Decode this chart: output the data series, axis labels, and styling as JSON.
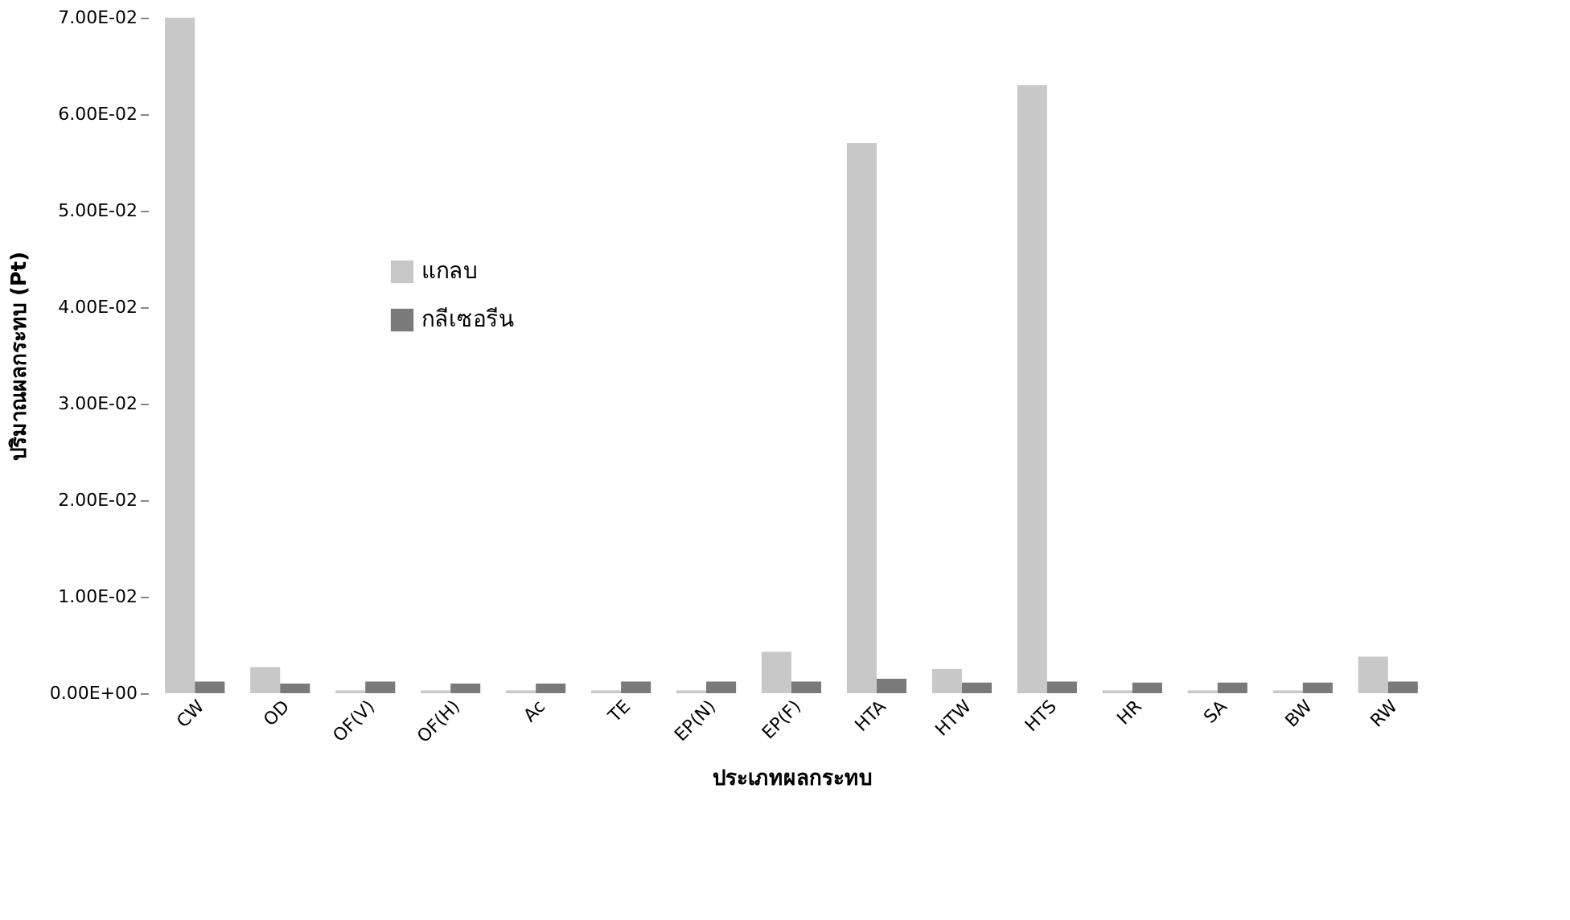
{
  "chart_data": {
    "type": "bar",
    "xlabel": "ประเภทผลกระทบ",
    "ylabel": "ปริมาณผลกระทบ (Pt)",
    "categories": [
      "CW",
      "OD",
      "OF(V)",
      "OF(H)",
      "Ac",
      "TE",
      "EP(N)",
      "EP(F)",
      "HTA",
      "HTW",
      "HTS",
      "HR",
      "SA",
      "BW",
      "RW"
    ],
    "series": [
      {
        "name": "แกลบ",
        "color": "#c8c8c8",
        "values": [
          0.07,
          0.0027,
          0.0003,
          0.0003,
          0.0003,
          0.0003,
          0.0003,
          0.0043,
          0.057,
          0.0025,
          0.063,
          0.0003,
          0.0003,
          0.0003,
          0.0038
        ]
      },
      {
        "name": "กลีเซอรีน",
        "color": "#7a7a7a",
        "values": [
          0.0012,
          0.001,
          0.0012,
          0.001,
          0.001,
          0.0012,
          0.0012,
          0.0012,
          0.0015,
          0.0011,
          0.0012,
          0.0011,
          0.0011,
          0.0011,
          0.0012
        ]
      }
    ],
    "ylim": [
      0,
      0.07
    ],
    "yticks": [
      {
        "value": 0,
        "label": "0.00E+00"
      },
      {
        "value": 0.01,
        "label": "1.00E-02"
      },
      {
        "value": 0.02,
        "label": "2.00E-02"
      },
      {
        "value": 0.03,
        "label": "3.00E-02"
      },
      {
        "value": 0.04,
        "label": "4.00E-02"
      },
      {
        "value": 0.05,
        "label": "5.00E-02"
      },
      {
        "value": 0.06,
        "label": "6.00E-02"
      },
      {
        "value": 0.07,
        "label": "7.00E-02"
      }
    ],
    "legend": "top left"
  }
}
